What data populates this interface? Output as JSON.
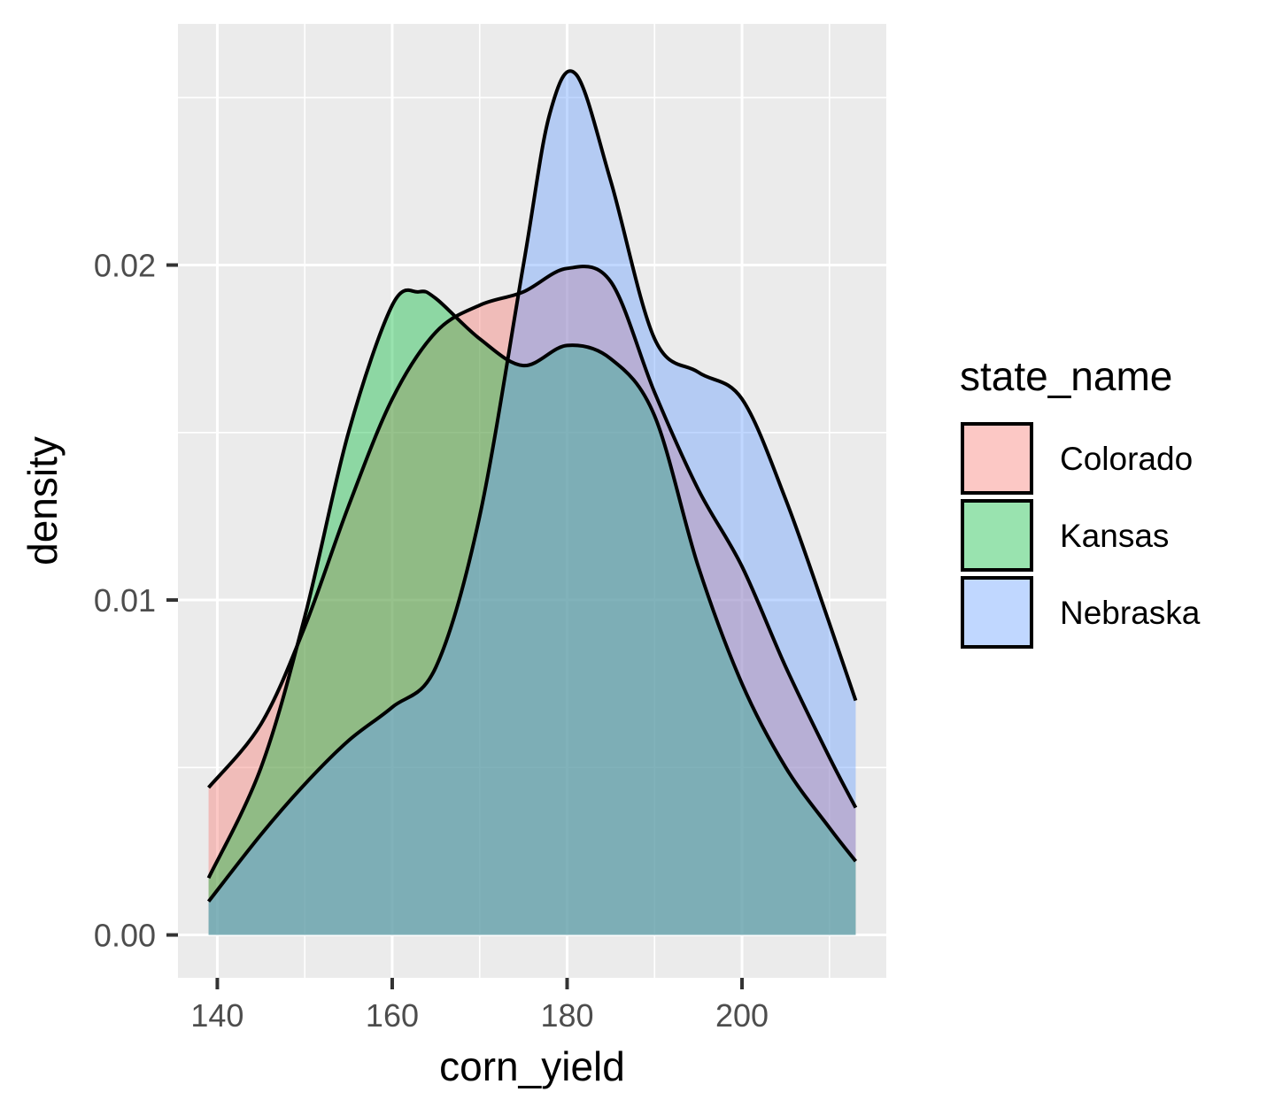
{
  "chart_data": {
    "type": "area",
    "subtype": "density",
    "xlabel": "corn_yield",
    "ylabel": "density",
    "xlim": [
      135.5,
      216.5
    ],
    "ylim": [
      -0.00128,
      0.0272
    ],
    "x_ticks": [
      140,
      160,
      180,
      200
    ],
    "x_tick_labels": [
      "140",
      "160",
      "180",
      "200"
    ],
    "y_ticks": [
      0,
      0.01,
      0.02
    ],
    "y_tick_labels": [
      "0.00",
      "0.01",
      "0.02"
    ],
    "grid": true,
    "legend": {
      "title": "state_name",
      "position": "right",
      "entries": [
        "Colorado",
        "Kansas",
        "Nebraska"
      ]
    },
    "fill_opacity": 0.4,
    "series": [
      {
        "name": "Colorado",
        "color": "#F8766D",
        "x": [
          139,
          145,
          150,
          155,
          160,
          165,
          170,
          175,
          180,
          185,
          190,
          195,
          200,
          205,
          210,
          213
        ],
        "y": [
          0.0044,
          0.0063,
          0.0092,
          0.0128,
          0.016,
          0.018,
          0.0188,
          0.0192,
          0.0199,
          0.0195,
          0.0162,
          0.0133,
          0.011,
          0.008,
          0.0053,
          0.0038
        ]
      },
      {
        "name": "Kansas",
        "color": "#00BA38",
        "x": [
          139,
          145,
          150,
          155,
          160,
          163,
          165,
          170,
          175,
          180,
          185,
          190,
          195,
          200,
          205,
          210,
          213
        ],
        "y": [
          0.0017,
          0.005,
          0.0095,
          0.015,
          0.0188,
          0.0192,
          0.019,
          0.0178,
          0.017,
          0.0176,
          0.0172,
          0.0155,
          0.011,
          0.0075,
          0.005,
          0.0032,
          0.0022
        ]
      },
      {
        "name": "Nebraska",
        "color": "#619CFF",
        "x": [
          139,
          145,
          150,
          155,
          160,
          165,
          170,
          175,
          178,
          181,
          185,
          190,
          195,
          200,
          205,
          210,
          213
        ],
        "y": [
          0.001,
          0.003,
          0.0045,
          0.0058,
          0.0068,
          0.008,
          0.0125,
          0.02,
          0.0245,
          0.0257,
          0.0225,
          0.0178,
          0.0168,
          0.016,
          0.013,
          0.0093,
          0.007
        ]
      }
    ]
  }
}
